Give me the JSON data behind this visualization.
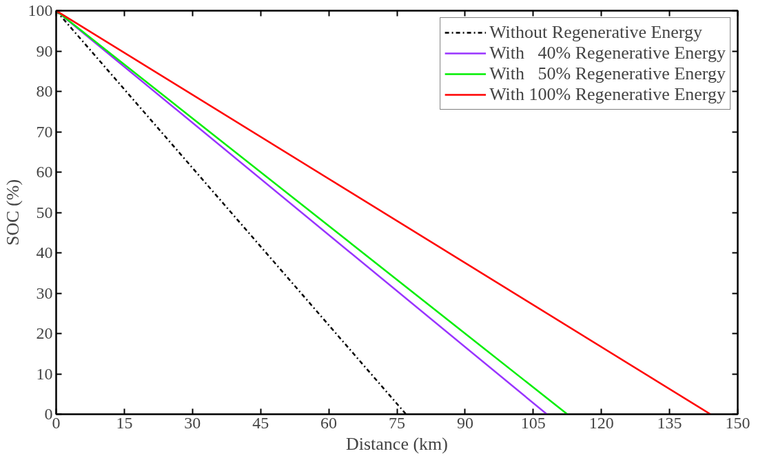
{
  "chart_data": {
    "type": "line",
    "xlabel": "Distance (km)",
    "ylabel": "SOC (%)",
    "xlim": [
      0,
      150
    ],
    "ylim": [
      0,
      100
    ],
    "xticks": [
      0,
      15,
      30,
      45,
      60,
      75,
      90,
      105,
      120,
      135,
      150
    ],
    "yticks": [
      0,
      10,
      20,
      30,
      40,
      50,
      60,
      70,
      80,
      90,
      100
    ],
    "grid": false,
    "legend": "top right",
    "marker": "none",
    "series": [
      {
        "name": "Without Regenerative Energy",
        "color": "#000000",
        "line_style": "dashdot",
        "x": [
          0,
          77
        ],
        "values": [
          100,
          0
        ]
      },
      {
        "name": "With   40% Regenerative Energy",
        "color": "#9933ff",
        "line_style": "solid",
        "x": [
          0,
          108
        ],
        "values": [
          100,
          0
        ]
      },
      {
        "name": "With   50% Regenerative Energy",
        "color": "#00ee00",
        "line_style": "solid",
        "x": [
          0,
          112.5
        ],
        "values": [
          100,
          0
        ]
      },
      {
        "name": "With 100% Regenerative Energy",
        "color": "#ff0000",
        "line_style": "solid",
        "x": [
          0,
          144
        ],
        "values": [
          100,
          0
        ]
      }
    ]
  }
}
